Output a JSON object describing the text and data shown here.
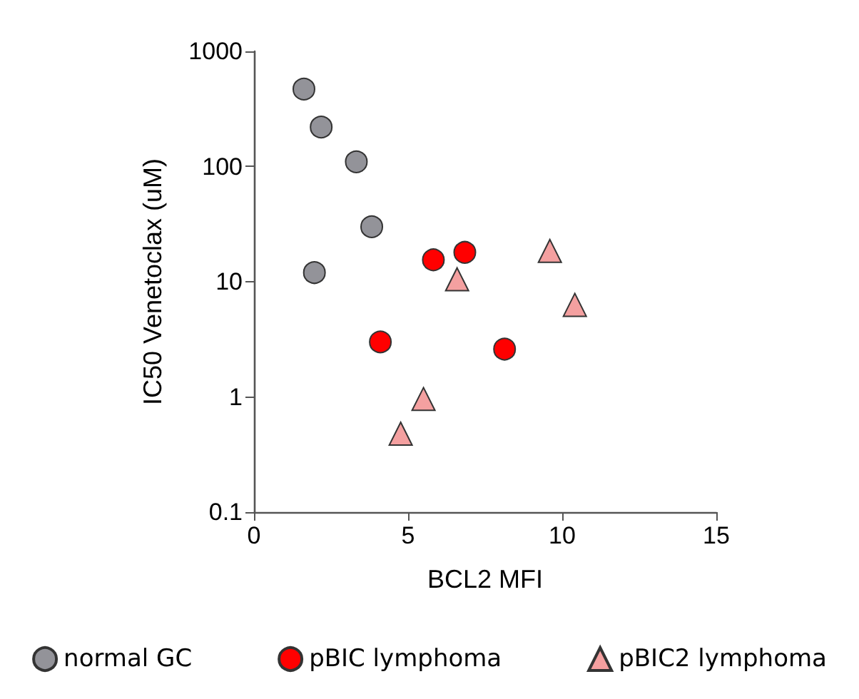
{
  "chart_data": {
    "type": "scatter",
    "xlabel": "BCL2 MFI",
    "ylabel": "IC50 Venetoclax (uM)",
    "xlim": [
      0,
      15
    ],
    "xticks": [
      0,
      5,
      10,
      15
    ],
    "ylim": [
      0.1,
      1000
    ],
    "yticks": [
      0.1,
      1,
      10,
      100,
      1000
    ],
    "log": "y",
    "grid": false,
    "legend": "bottom",
    "series": [
      {
        "name": "normal GC",
        "color": "#939399",
        "marker": "circle",
        "x": [
          1.62,
          2.18,
          3.32,
          3.82,
          1.96
        ],
        "values": [
          470,
          220,
          110,
          30,
          12
        ]
      },
      {
        "name": "pBIC lymphoma",
        "color": "#ff0000",
        "marker": "circle",
        "x": [
          5.82,
          6.84,
          4.1,
          8.13
        ],
        "values": [
          15.5,
          18,
          3,
          2.6
        ]
      },
      {
        "name": "pBIC2 lymphoma",
        "color": "#f4a0a0",
        "marker": "triangle",
        "x": [
          6.59,
          9.6,
          10.41,
          5.5,
          4.76
        ],
        "values": [
          10.5,
          18.5,
          6.3,
          0.96,
          0.48
        ]
      }
    ]
  }
}
